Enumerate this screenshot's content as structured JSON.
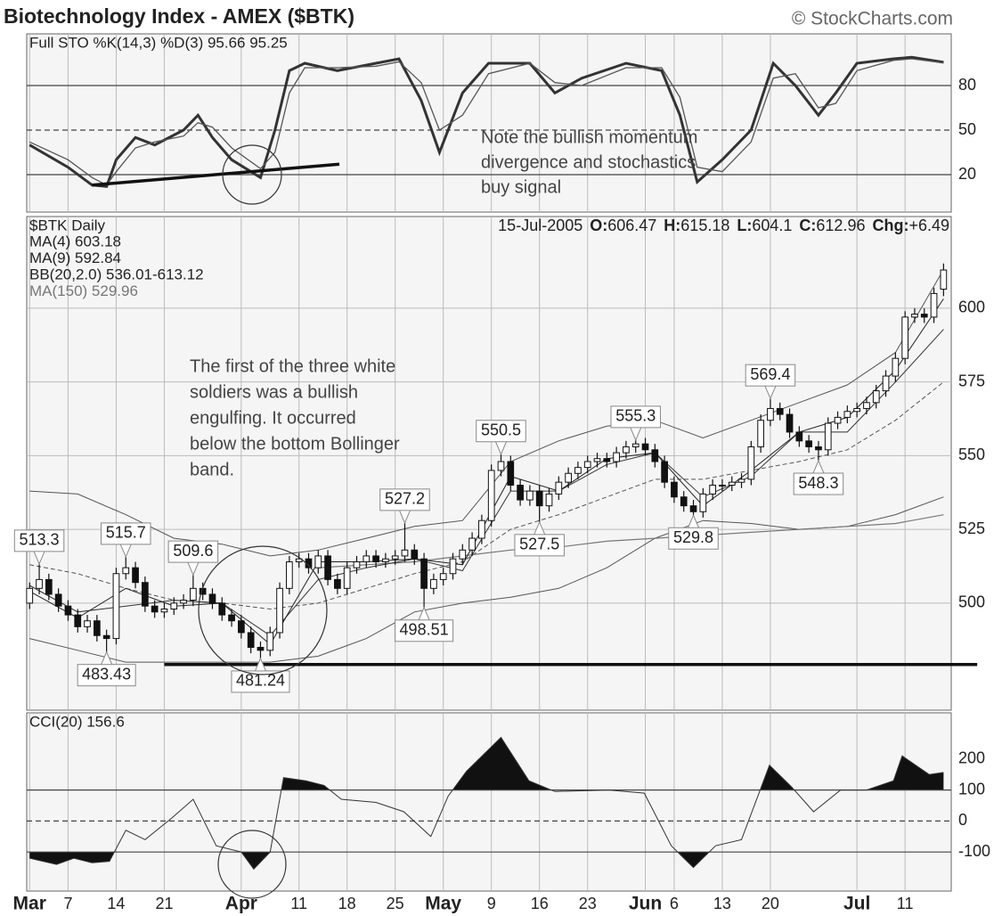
{
  "title": "Biotechnology Index - AMEX ($BTK)",
  "watermark": "© StockCharts.com",
  "chart_data": [
    {
      "type": "stochastic",
      "title": "Full STO %K(14,3) %D(3)  95.66  95.25",
      "xlim": [
        -0.3,
        95.8
      ],
      "ylim": [
        -5.2,
        114.8
      ],
      "yticks": [
        20,
        50,
        80
      ],
      "grid_lines": [
        {
          "value": 20
        },
        {
          "value": 50,
          "dashed": true
        },
        {
          "value": 80
        }
      ],
      "series": [
        {
          "color": "#333",
          "width": 3,
          "x": [
            0,
            4,
            6.5,
            8,
            9,
            11,
            13,
            16,
            17.5,
            19,
            21,
            24,
            25.5,
            27,
            28.6,
            32,
            36,
            38.4,
            40.7,
            42.6,
            45,
            47.7,
            52,
            54.6,
            57.4,
            62,
            65.7,
            67.6,
            69.4,
            72,
            75,
            77.3,
            79.6,
            82,
            83.8,
            86,
            89.8,
            91.7,
            95
          ],
          "values": [
            40,
            25,
            13,
            12,
            30,
            45,
            40,
            50,
            60,
            45,
            30,
            18,
            50,
            90,
            95,
            90,
            95,
            98,
            70,
            35,
            75,
            95,
            95,
            75,
            85,
            95,
            90,
            60,
            15,
            30,
            50,
            95,
            80,
            60,
            75,
            95,
            98,
            99,
            95.66
          ]
        },
        {
          "color": "#555",
          "width": 1.3,
          "x": [
            0,
            4,
            6.5,
            8,
            9,
            11,
            13,
            16,
            17.5,
            19,
            21,
            24,
            25.5,
            27,
            28.6,
            32,
            36,
            38.4,
            40.7,
            42.6,
            45,
            47.7,
            52,
            54.6,
            57.4,
            62,
            65.7,
            67.6,
            69.4,
            72,
            75,
            77.3,
            79.6,
            82,
            83.8,
            86,
            89.8,
            91.7,
            95
          ],
          "values": [
            42,
            30,
            18,
            13,
            22,
            38,
            42,
            46,
            55,
            52,
            38,
            24,
            35,
            75,
            92,
            92,
            93,
            96,
            82,
            50,
            60,
            88,
            95,
            82,
            80,
            92,
            92,
            72,
            25,
            22,
            42,
            85,
            88,
            65,
            68,
            90,
            97,
            98,
            95.25
          ]
        }
      ],
      "trendline": {
        "x": [
          6.5,
          32.2
        ],
        "values": [
          13,
          27
        ]
      },
      "note": [
        "Note the bullish momentum",
        "divergence and stochastics",
        "buy signal"
      ]
    },
    {
      "type": "candlestick",
      "title": "$BTK Daily",
      "date": "15-Jul-2005",
      "quote": [
        {
          "key": "O:",
          "value": 606.47
        },
        {
          "key": "H:",
          "value": 615.18
        },
        {
          "key": "L:",
          "value": 604.1
        },
        {
          "key": "C:",
          "value": 612.96
        },
        {
          "key": "Chg:",
          "value": "+6.49"
        }
      ],
      "legend": [
        "MA(4) 603.18",
        "MA(9) 592.84",
        "BB(20,2.0) 536.01-613.12",
        "MA(150) 529.96"
      ],
      "xlim": [
        -0.3,
        95.8
      ],
      "ylim": [
        463.7,
        631.1
      ],
      "yticks": [
        500,
        525,
        550,
        575,
        600
      ],
      "grid": true,
      "open": [
        500,
        505,
        508,
        503,
        499,
        496,
        492,
        494,
        489,
        488,
        510,
        512,
        507,
        499,
        497,
        498,
        500,
        501,
        505,
        503,
        500,
        496,
        494,
        490,
        485,
        484,
        490,
        505,
        514,
        515,
        512,
        516,
        508,
        505,
        512,
        514,
        516,
        514,
        515,
        516,
        518,
        515,
        505,
        508,
        510,
        515,
        518,
        522,
        528,
        545,
        548,
        540,
        535,
        538,
        533,
        537,
        541,
        544,
        546,
        548,
        549,
        548,
        551,
        553,
        554,
        552,
        548,
        541,
        536,
        533,
        531,
        537,
        540,
        540,
        541,
        542,
        553,
        562,
        566,
        564,
        558,
        555,
        553,
        552,
        561,
        563,
        565,
        566,
        568,
        572,
        577,
        583,
        597,
        598,
        597,
        606.47
      ],
      "high": [
        507,
        513.3,
        510,
        505,
        501,
        498,
        496,
        496,
        491,
        512,
        515.7,
        514,
        509,
        501,
        500,
        502,
        503,
        509.6,
        507,
        505,
        502,
        498,
        496,
        492,
        487,
        492,
        507,
        516,
        517,
        517,
        518,
        518,
        510,
        514,
        516,
        518,
        518,
        517,
        518,
        527.2,
        520,
        517,
        510,
        512,
        517,
        520,
        524,
        530,
        547,
        550.5,
        550,
        542,
        540,
        540,
        539,
        543,
        546,
        548,
        550,
        551,
        551,
        553,
        555,
        555.3,
        556,
        554,
        550,
        543,
        538,
        535,
        539,
        542,
        542,
        543,
        544,
        555,
        564,
        569.4,
        568,
        566,
        560,
        557,
        555,
        563,
        565,
        567,
        568,
        570,
        574,
        579,
        585,
        599,
        600,
        600,
        607,
        615.18
      ],
      "low": [
        498,
        503,
        501,
        497,
        494,
        490,
        490,
        487,
        483.43,
        486,
        508,
        505,
        497,
        495,
        495,
        496,
        498,
        499,
        501,
        498,
        494,
        492,
        488,
        483,
        481.24,
        482,
        488,
        503,
        512,
        510,
        510,
        506,
        503,
        503,
        510,
        512,
        512,
        512,
        513,
        514,
        513,
        498.51,
        503,
        506,
        508,
        513,
        516,
        520,
        526,
        543,
        538,
        533,
        533,
        527.5,
        531,
        535,
        539,
        542,
        544,
        546,
        546,
        546,
        549,
        551,
        550,
        546,
        539,
        534,
        531,
        529.8,
        529,
        535,
        538,
        538,
        539,
        540,
        551,
        560,
        562,
        556,
        553,
        551,
        548.3,
        550,
        559,
        561,
        563,
        564,
        566,
        570,
        575,
        581,
        595,
        595,
        595,
        604.1
      ],
      "close": [
        505,
        508,
        503,
        499,
        496,
        492,
        494,
        489,
        488,
        510,
        512,
        507,
        499,
        497,
        498,
        500,
        501,
        505,
        503,
        500,
        496,
        494,
        490,
        485,
        484,
        490,
        505,
        514,
        515,
        512,
        516,
        508,
        505,
        512,
        514,
        516,
        514,
        515,
        516,
        518,
        515,
        505,
        508,
        510,
        515,
        518,
        522,
        528,
        545,
        548,
        540,
        535,
        538,
        533,
        537,
        541,
        544,
        546,
        548,
        549,
        548,
        551,
        553,
        554,
        552,
        548,
        541,
        536,
        533,
        531,
        537,
        540,
        540,
        541,
        542,
        553,
        562,
        566,
        564,
        558,
        555,
        553,
        552,
        561,
        563,
        565,
        566,
        568,
        572,
        577,
        583,
        597,
        598,
        597,
        605,
        612.96
      ],
      "overlays": [
        {
          "color": "#555",
          "width": 1,
          "x": [
            0,
            5,
            10,
            15,
            20,
            25,
            30,
            35,
            40,
            45,
            50,
            55,
            60,
            65,
            70,
            75,
            80,
            85,
            90,
            95
          ],
          "values": [
            538,
            537,
            530,
            522,
            520,
            516,
            518,
            522,
            526,
            528,
            548,
            555,
            560,
            562,
            556,
            562,
            568,
            574,
            585,
            613.12
          ]
        },
        {
          "color": "#555",
          "width": 1,
          "x": [
            0,
            5,
            10,
            15,
            20,
            25,
            30,
            35,
            40,
            45,
            50,
            55,
            60,
            65,
            70,
            75,
            80,
            85,
            90,
            95
          ],
          "values": [
            488,
            484,
            480,
            480,
            480,
            480,
            482,
            488,
            497,
            500,
            502,
            505,
            512,
            522,
            528,
            527,
            525,
            526,
            530,
            536.01
          ]
        },
        {
          "color": "#555",
          "width": 1,
          "dashed": true,
          "x": [
            0,
            5,
            10,
            15,
            20,
            25,
            30,
            35,
            40,
            45,
            50,
            55,
            60,
            65,
            70,
            75,
            80,
            85,
            90,
            95
          ],
          "values": [
            513,
            510,
            505,
            501,
            500,
            498,
            500,
            505,
            510,
            514,
            525,
            530,
            536,
            542,
            542,
            545,
            548,
            552,
            562,
            575
          ]
        },
        {
          "color": "#777",
          "width": 1.2,
          "x": [
            30,
            35,
            40,
            45,
            50,
            55,
            60,
            65,
            70,
            75,
            80,
            85,
            90,
            95
          ],
          "values": [
            512,
            513,
            514,
            516,
            518,
            519,
            521,
            522,
            523,
            524,
            525,
            526,
            527,
            529.96
          ]
        },
        {
          "color": "#333",
          "width": 1,
          "x": [
            0,
            5,
            10,
            15,
            20,
            25,
            30,
            35,
            40,
            45,
            50,
            55,
            60,
            65,
            70,
            75,
            80,
            85,
            90,
            95
          ],
          "values": [
            506,
            497,
            499,
            501,
            500,
            489,
            508,
            512,
            515,
            511,
            538,
            538,
            547,
            551,
            536,
            543,
            558,
            558,
            575,
            592.84
          ]
        },
        {
          "color": "#222",
          "width": 1,
          "x": [
            0,
            5,
            10,
            15,
            20,
            25,
            30,
            35,
            40,
            45,
            50,
            55,
            60,
            65,
            70,
            75,
            80,
            85,
            90,
            95
          ],
          "values": [
            504,
            495,
            505,
            499,
            500,
            486,
            514,
            514,
            515,
            513,
            543,
            538,
            549,
            551,
            533,
            545,
            558,
            563,
            579,
            603.18
          ]
        }
      ],
      "support": {
        "x": [
          14,
          98.5
        ],
        "value": 479.2
      },
      "callouts": [
        {
          "x": 1,
          "value": 513.3,
          "at": "high"
        },
        {
          "x": 10,
          "value": 515.7,
          "at": "high"
        },
        {
          "x": 17,
          "value": 509.6,
          "at": "high"
        },
        {
          "x": 39,
          "value": 527.2,
          "at": "high"
        },
        {
          "x": 49,
          "value": 550.5,
          "at": "high"
        },
        {
          "x": 63,
          "value": 555.3,
          "at": "high"
        },
        {
          "x": 77,
          "value": 569.4,
          "at": "high"
        },
        {
          "x": 8,
          "value": 483.43,
          "at": "low"
        },
        {
          "x": 24,
          "value": 481.24,
          "at": "low"
        },
        {
          "x": 41,
          "value": 498.51,
          "at": "low"
        },
        {
          "x": 53,
          "value": 527.5,
          "at": "low"
        },
        {
          "x": 69,
          "value": 529.8,
          "at": "low"
        },
        {
          "x": 82,
          "value": 548.3,
          "at": "low"
        }
      ],
      "note": [
        "The first of the three white",
        "soldiers was a bullish",
        "engulfing.  It occurred",
        "below the bottom Bollinger",
        "band."
      ]
    },
    {
      "type": "cci",
      "title": "CCI(20)  156.6",
      "xlim": [
        -0.3,
        95.8
      ],
      "ylim": [
        -226,
        349
      ],
      "yticks": [
        -100,
        0,
        100,
        200
      ],
      "grid_lines": [
        {
          "value": -100
        },
        {
          "value": 0,
          "dashed": true
        },
        {
          "value": 100
        }
      ],
      "x": [
        0,
        2.8,
        4.6,
        6.5,
        8.3,
        10,
        12,
        14.8,
        17,
        19.4,
        22,
        23.3,
        25,
        26.4,
        28.7,
        30.6,
        32.4,
        36,
        38.9,
        41.7,
        43.5,
        45.4,
        49,
        51.9,
        54.6,
        60.2,
        63.9,
        66.7,
        69,
        71.3,
        74,
        76.9,
        79.2,
        81.5,
        84.3,
        87,
        89.8,
        90.7,
        93.5,
        95
      ],
      "values": [
        -120,
        -140,
        -120,
        -135,
        -130,
        -30,
        -60,
        10,
        70,
        -80,
        -100,
        -155,
        -100,
        140,
        130,
        115,
        70,
        60,
        30,
        -50,
        80,
        160,
        270,
        130,
        95,
        100,
        90,
        -80,
        -150,
        -80,
        -60,
        180,
        110,
        30,
        100,
        100,
        130,
        210,
        150,
        156.6
      ],
      "xticks": [
        {
          "value": 0,
          "label": "Mar"
        },
        {
          "value": 4,
          "label": "7"
        },
        {
          "value": 9,
          "label": "14"
        },
        {
          "value": 14,
          "label": "21"
        },
        {
          "value": 22,
          "label": "Apr"
        },
        {
          "value": 28,
          "label": "11"
        },
        {
          "value": 33,
          "label": "18"
        },
        {
          "value": 38,
          "label": "25"
        },
        {
          "value": 43,
          "label": "May"
        },
        {
          "value": 48,
          "label": "9"
        },
        {
          "value": 53,
          "label": "16"
        },
        {
          "value": 58,
          "label": "23"
        },
        {
          "value": 64,
          "label": "Jun"
        },
        {
          "value": 67,
          "label": "6"
        },
        {
          "value": 72,
          "label": "13"
        },
        {
          "value": 77,
          "label": "20"
        },
        {
          "value": 86,
          "label": "Jul"
        },
        {
          "value": 91,
          "label": "11"
        }
      ]
    }
  ]
}
